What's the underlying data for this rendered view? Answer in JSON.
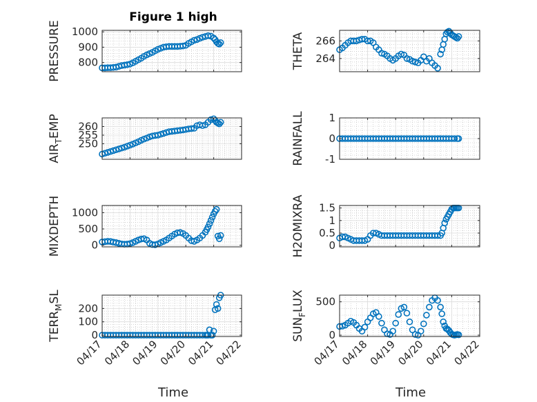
{
  "figure_title": "Figure 1 high",
  "x_axis_label": "Time",
  "x_tick_labels": [
    "04/17",
    "04/18",
    "04/19",
    "04/20",
    "04/21",
    "04/22"
  ],
  "colors": {
    "marker": "#0072BD",
    "axis": "#262626",
    "grid": "#b8b8b8"
  },
  "chart_data": [
    {
      "type": "scatter",
      "id": "pressure",
      "ylabel_parts": [
        [
          "PRESSURE",
          ""
        ]
      ],
      "title": "Figure 1 high",
      "xlim": [
        0,
        5
      ],
      "ylim": [
        740,
        1010
      ],
      "yticks": [
        800,
        900,
        1000
      ],
      "grid": true,
      "x": [
        0.0,
        0.1,
        0.2,
        0.3,
        0.4,
        0.5,
        0.6,
        0.7,
        0.8,
        0.9,
        1.0,
        1.1,
        1.2,
        1.3,
        1.4,
        1.5,
        1.6,
        1.7,
        1.8,
        1.9,
        2.0,
        2.1,
        2.2,
        2.3,
        2.4,
        2.5,
        2.6,
        2.7,
        2.8,
        2.9,
        3.0,
        3.1,
        3.2,
        3.3,
        3.4,
        3.5,
        3.6,
        3.7,
        3.8,
        3.9,
        4.0,
        4.05,
        4.1,
        4.15,
        4.2,
        4.25
      ],
      "y": [
        765,
        765,
        766,
        766,
        768,
        770,
        775,
        780,
        783,
        786,
        790,
        798,
        808,
        818,
        828,
        840,
        850,
        858,
        866,
        876,
        886,
        893,
        900,
        903,
        905,
        905,
        905,
        905,
        906,
        908,
        912,
        925,
        935,
        945,
        950,
        958,
        965,
        970,
        975,
        972,
        960,
        950,
        935,
        925,
        920,
        930
      ]
    },
    {
      "type": "scatter",
      "id": "theta",
      "ylabel_parts": [
        [
          "THETA",
          ""
        ]
      ],
      "xlim": [
        0,
        5
      ],
      "ylim": [
        262.5,
        267.2
      ],
      "yticks": [
        264,
        266
      ],
      "grid": true,
      "x": [
        0.0,
        0.1,
        0.2,
        0.3,
        0.4,
        0.5,
        0.6,
        0.7,
        0.8,
        0.9,
        1.0,
        1.1,
        1.2,
        1.3,
        1.4,
        1.5,
        1.6,
        1.7,
        1.8,
        1.9,
        2.0,
        2.1,
        2.2,
        2.3,
        2.4,
        2.5,
        2.6,
        2.7,
        2.8,
        2.9,
        3.0,
        3.1,
        3.2,
        3.3,
        3.4,
        3.5,
        3.6,
        3.65,
        3.7,
        3.75,
        3.8,
        3.85,
        3.9,
        3.95,
        4.0,
        4.05,
        4.1,
        4.15,
        4.2,
        4.25
      ],
      "y": [
        265.0,
        265.2,
        265.5,
        265.8,
        266.0,
        266.0,
        266.0,
        266.1,
        266.2,
        266.2,
        266.0,
        266.0,
        265.8,
        265.3,
        265.0,
        264.6,
        264.5,
        264.3,
        264.0,
        263.8,
        264.0,
        264.3,
        264.5,
        264.4,
        264.0,
        263.9,
        263.7,
        263.6,
        263.5,
        263.8,
        264.2,
        263.7,
        264.0,
        263.5,
        263.2,
        262.9,
        264.5,
        265.0,
        265.6,
        266.2,
        266.8,
        267.0,
        267.1,
        266.9,
        266.7,
        266.6,
        266.5,
        266.4,
        266.3,
        266.5
      ]
    },
    {
      "type": "scatter",
      "id": "air_temp",
      "ylabel_parts": [
        [
          "AIR",
          ""
        ],
        [
          "T",
          "sub"
        ],
        [
          "EMP",
          ""
        ]
      ],
      "xlim": [
        0,
        5
      ],
      "ylim": [
        241,
        265
      ],
      "yticks": [
        250,
        255,
        260
      ],
      "grid": true,
      "x": [
        0.0,
        0.1,
        0.2,
        0.3,
        0.4,
        0.5,
        0.6,
        0.7,
        0.8,
        0.9,
        1.0,
        1.1,
        1.2,
        1.3,
        1.4,
        1.5,
        1.6,
        1.7,
        1.8,
        1.9,
        2.0,
        2.1,
        2.2,
        2.3,
        2.4,
        2.5,
        2.6,
        2.7,
        2.8,
        2.9,
        3.0,
        3.1,
        3.2,
        3.3,
        3.4,
        3.5,
        3.6,
        3.7,
        3.8,
        3.9,
        4.0,
        4.05,
        4.1,
        4.15,
        4.2,
        4.25
      ],
      "y": [
        244,
        244.5,
        245,
        245.5,
        246,
        246.5,
        247,
        247.5,
        248,
        248.6,
        249.2,
        249.8,
        250.5,
        251.2,
        252,
        252.7,
        253.3,
        254,
        254.5,
        254.8,
        255,
        255.5,
        256,
        256.5,
        257,
        257.2,
        257.4,
        257.6,
        257.8,
        258,
        258.3,
        258.6,
        258.8,
        259,
        260.5,
        261,
        260.5,
        261,
        262.5,
        264,
        264.5,
        263.5,
        262.5,
        262,
        261.5,
        262.5
      ]
    },
    {
      "type": "scatter",
      "id": "rainfall",
      "ylabel_parts": [
        [
          "RAINFALL",
          ""
        ]
      ],
      "xlim": [
        0,
        5
      ],
      "ylim": [
        -1,
        1
      ],
      "yticks": [
        -1,
        0,
        1
      ],
      "grid": true,
      "x": [
        0.0,
        0.1,
        0.2,
        0.3,
        0.4,
        0.5,
        0.6,
        0.7,
        0.8,
        0.9,
        1.0,
        1.1,
        1.2,
        1.3,
        1.4,
        1.5,
        1.6,
        1.7,
        1.8,
        1.9,
        2.0,
        2.1,
        2.2,
        2.3,
        2.4,
        2.5,
        2.6,
        2.7,
        2.8,
        2.9,
        3.0,
        3.1,
        3.2,
        3.3,
        3.4,
        3.5,
        3.6,
        3.7,
        3.8,
        3.9,
        4.0,
        4.1,
        4.2,
        4.25
      ],
      "y": [
        0,
        0,
        0,
        0,
        0,
        0,
        0,
        0,
        0,
        0,
        0,
        0,
        0,
        0,
        0,
        0,
        0,
        0,
        0,
        0,
        0,
        0,
        0,
        0,
        0,
        0,
        0,
        0,
        0,
        0,
        0,
        0,
        0,
        0,
        0,
        0,
        0,
        0,
        0,
        0,
        0,
        0,
        0,
        0
      ]
    },
    {
      "type": "scatter",
      "id": "mixdepth",
      "ylabel_parts": [
        [
          "MIXDEPTH",
          ""
        ]
      ],
      "xlim": [
        0,
        5
      ],
      "ylim": [
        -50,
        1220
      ],
      "yticks": [
        0,
        500,
        1000
      ],
      "grid": true,
      "x": [
        0.0,
        0.1,
        0.2,
        0.3,
        0.4,
        0.5,
        0.6,
        0.7,
        0.8,
        0.9,
        1.0,
        1.1,
        1.2,
        1.3,
        1.4,
        1.5,
        1.6,
        1.7,
        1.8,
        1.9,
        2.0,
        2.1,
        2.2,
        2.3,
        2.4,
        2.5,
        2.6,
        2.7,
        2.8,
        2.9,
        3.0,
        3.1,
        3.2,
        3.3,
        3.4,
        3.5,
        3.6,
        3.7,
        3.75,
        3.8,
        3.85,
        3.9,
        3.95,
        4.0,
        4.05,
        4.1,
        4.15,
        4.2,
        4.25
      ],
      "y": [
        100,
        110,
        120,
        115,
        95,
        80,
        60,
        40,
        30,
        35,
        50,
        80,
        120,
        160,
        190,
        200,
        160,
        60,
        20,
        15,
        40,
        80,
        120,
        160,
        220,
        280,
        340,
        380,
        390,
        360,
        300,
        220,
        140,
        120,
        160,
        220,
        300,
        400,
        480,
        560,
        660,
        760,
        860,
        960,
        1040,
        1100,
        280,
        200,
        300
      ]
    },
    {
      "type": "scatter",
      "id": "h2omixra",
      "ylabel_parts": [
        [
          "H2OMIXRA",
          ""
        ]
      ],
      "xlim": [
        0,
        5
      ],
      "ylim": [
        -0.05,
        1.6
      ],
      "yticks": [
        0,
        0.5,
        1,
        1.5
      ],
      "grid": true,
      "x": [
        0.0,
        0.1,
        0.2,
        0.3,
        0.4,
        0.5,
        0.6,
        0.7,
        0.8,
        0.9,
        1.0,
        1.1,
        1.2,
        1.3,
        1.4,
        1.5,
        1.6,
        1.7,
        1.8,
        1.9,
        2.0,
        2.1,
        2.2,
        2.3,
        2.4,
        2.5,
        2.6,
        2.7,
        2.8,
        2.9,
        3.0,
        3.1,
        3.2,
        3.3,
        3.4,
        3.5,
        3.6,
        3.65,
        3.7,
        3.75,
        3.8,
        3.85,
        3.9,
        3.95,
        4.0,
        4.05,
        4.1,
        4.15,
        4.2,
        4.25
      ],
      "y": [
        0.3,
        0.35,
        0.35,
        0.3,
        0.25,
        0.2,
        0.2,
        0.2,
        0.2,
        0.2,
        0.25,
        0.4,
        0.5,
        0.5,
        0.45,
        0.4,
        0.4,
        0.4,
        0.4,
        0.4,
        0.4,
        0.4,
        0.4,
        0.4,
        0.4,
        0.4,
        0.4,
        0.4,
        0.4,
        0.4,
        0.4,
        0.4,
        0.4,
        0.4,
        0.4,
        0.4,
        0.4,
        0.5,
        0.7,
        0.9,
        1.05,
        1.15,
        1.25,
        1.35,
        1.45,
        1.5,
        1.5,
        1.5,
        1.5,
        1.5
      ]
    },
    {
      "type": "scatter",
      "id": "terr_msl",
      "ylabel_parts": [
        [
          "TERR",
          ""
        ],
        [
          "M",
          "sub"
        ],
        [
          "SL",
          ""
        ]
      ],
      "xlim": [
        0,
        5
      ],
      "ylim": [
        -10,
        300
      ],
      "yticks": [
        0,
        100,
        200
      ],
      "grid": true,
      "x": [
        0.0,
        0.1,
        0.2,
        0.3,
        0.4,
        0.5,
        0.6,
        0.7,
        0.8,
        0.9,
        1.0,
        1.1,
        1.2,
        1.3,
        1.4,
        1.5,
        1.6,
        1.7,
        1.8,
        1.9,
        2.0,
        2.1,
        2.2,
        2.3,
        2.4,
        2.5,
        2.6,
        2.7,
        2.8,
        2.9,
        3.0,
        3.1,
        3.2,
        3.3,
        3.4,
        3.5,
        3.6,
        3.7,
        3.75,
        3.8,
        3.85,
        3.9,
        3.95,
        4.0,
        4.05,
        4.1,
        4.15,
        4.2,
        4.25
      ],
      "y": [
        0,
        0,
        0,
        0,
        0,
        0,
        0,
        0,
        0,
        0,
        0,
        0,
        0,
        0,
        0,
        0,
        0,
        0,
        0,
        0,
        0,
        0,
        0,
        0,
        0,
        0,
        0,
        0,
        0,
        0,
        0,
        0,
        0,
        0,
        0,
        0,
        0,
        0,
        0,
        0,
        40,
        0,
        0,
        30,
        190,
        230,
        200,
        280,
        300
      ]
    },
    {
      "type": "scatter",
      "id": "sun_flux",
      "ylabel_parts": [
        [
          "SUN",
          ""
        ],
        [
          "F",
          "sub"
        ],
        [
          "LUX",
          ""
        ]
      ],
      "xlim": [
        0,
        5
      ],
      "ylim": [
        -20,
        600
      ],
      "yticks": [
        0,
        500
      ],
      "grid": true,
      "x": [
        0.0,
        0.1,
        0.2,
        0.3,
        0.4,
        0.5,
        0.6,
        0.7,
        0.8,
        0.9,
        1.0,
        1.1,
        1.2,
        1.3,
        1.4,
        1.5,
        1.6,
        1.7,
        1.8,
        1.9,
        2.0,
        2.1,
        2.2,
        2.3,
        2.4,
        2.5,
        2.6,
        2.7,
        2.8,
        2.9,
        3.0,
        3.1,
        3.2,
        3.3,
        3.4,
        3.5,
        3.6,
        3.65,
        3.7,
        3.75,
        3.8,
        3.85,
        3.9,
        3.95,
        4.0,
        4.05,
        4.1,
        4.15,
        4.2,
        4.25
      ],
      "y": [
        130,
        135,
        150,
        180,
        210,
        190,
        150,
        100,
        60,
        120,
        200,
        260,
        320,
        340,
        280,
        180,
        80,
        20,
        10,
        60,
        180,
        310,
        400,
        420,
        330,
        200,
        80,
        10,
        0,
        60,
        170,
        300,
        420,
        520,
        560,
        520,
        420,
        320,
        200,
        140,
        100,
        90,
        70,
        40,
        15,
        5,
        0,
        5,
        10,
        5
      ]
    }
  ]
}
